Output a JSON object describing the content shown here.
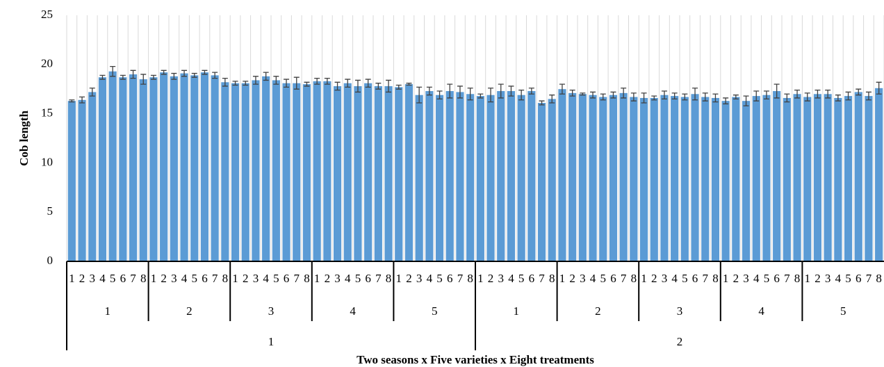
{
  "chart_data": {
    "type": "bar",
    "y_label": "Cob length",
    "x_label": "Two seasons x Five varieties x Eight treatments",
    "categories": [
      "1",
      "2",
      "3",
      "4",
      "5",
      "6",
      "7",
      "8",
      "1",
      "2",
      "3",
      "4",
      "5",
      "6",
      "7",
      "8",
      "1",
      "2",
      "3",
      "4",
      "5",
      "6",
      "7",
      "8",
      "1",
      "2",
      "3",
      "4",
      "5",
      "6",
      "7",
      "8",
      "1",
      "2",
      "3",
      "4",
      "5",
      "6",
      "7",
      "8",
      "1",
      "2",
      "3",
      "4",
      "5",
      "6",
      "7",
      "8",
      "1",
      "2",
      "3",
      "4",
      "5",
      "6",
      "7",
      "8",
      "1",
      "2",
      "3",
      "4",
      "5",
      "6",
      "7",
      "8",
      "1",
      "2",
      "3",
      "4",
      "5",
      "6",
      "7",
      "8",
      "1",
      "2",
      "3",
      "4",
      "5",
      "6",
      "7",
      "8"
    ],
    "varieties": [
      "1",
      "2",
      "3",
      "4",
      "5",
      "1",
      "2",
      "3",
      "4",
      "5"
    ],
    "seasons": [
      "1",
      "2"
    ],
    "values": [
      16.3,
      16.4,
      17.2,
      18.7,
      19.3,
      18.7,
      19.0,
      18.5,
      18.7,
      19.2,
      18.8,
      19.1,
      18.9,
      19.2,
      18.9,
      18.2,
      18.1,
      18.1,
      18.4,
      18.8,
      18.4,
      18.1,
      18.1,
      18.0,
      18.3,
      18.3,
      17.8,
      18.1,
      17.8,
      18.1,
      17.8,
      17.8,
      17.7,
      18.0,
      16.9,
      17.3,
      16.9,
      17.3,
      17.2,
      17.0,
      16.8,
      16.9,
      17.3,
      17.3,
      16.9,
      17.3,
      16.1,
      16.5,
      17.5,
      17.1,
      17.0,
      16.9,
      16.7,
      16.9,
      17.1,
      16.7,
      16.6,
      16.6,
      16.9,
      16.8,
      16.7,
      17.0,
      16.7,
      16.6,
      16.3,
      16.7,
      16.3,
      16.8,
      16.9,
      17.3,
      16.6,
      17.0,
      16.7,
      17.0,
      17.0,
      16.6,
      16.8,
      17.2,
      16.8,
      17.6
    ],
    "errors": [
      0.1,
      0.3,
      0.4,
      0.2,
      0.5,
      0.2,
      0.4,
      0.5,
      0.2,
      0.2,
      0.3,
      0.3,
      0.2,
      0.2,
      0.3,
      0.4,
      0.2,
      0.2,
      0.4,
      0.4,
      0.4,
      0.4,
      0.6,
      0.2,
      0.3,
      0.3,
      0.4,
      0.4,
      0.6,
      0.4,
      0.3,
      0.6,
      0.2,
      0.1,
      0.8,
      0.4,
      0.4,
      0.7,
      0.6,
      0.6,
      0.2,
      0.7,
      0.7,
      0.5,
      0.5,
      0.3,
      0.2,
      0.4,
      0.5,
      0.3,
      0.1,
      0.3,
      0.3,
      0.3,
      0.5,
      0.4,
      0.5,
      0.2,
      0.4,
      0.3,
      0.3,
      0.6,
      0.4,
      0.4,
      0.3,
      0.2,
      0.5,
      0.5,
      0.4,
      0.7,
      0.4,
      0.4,
      0.4,
      0.4,
      0.4,
      0.3,
      0.4,
      0.3,
      0.4,
      0.6
    ],
    "color": "#5b9bd5",
    "error_color": "#404040",
    "ylim": [
      0,
      25
    ],
    "yticks": [
      0,
      5,
      10,
      15,
      20,
      25
    ],
    "grid": true
  }
}
